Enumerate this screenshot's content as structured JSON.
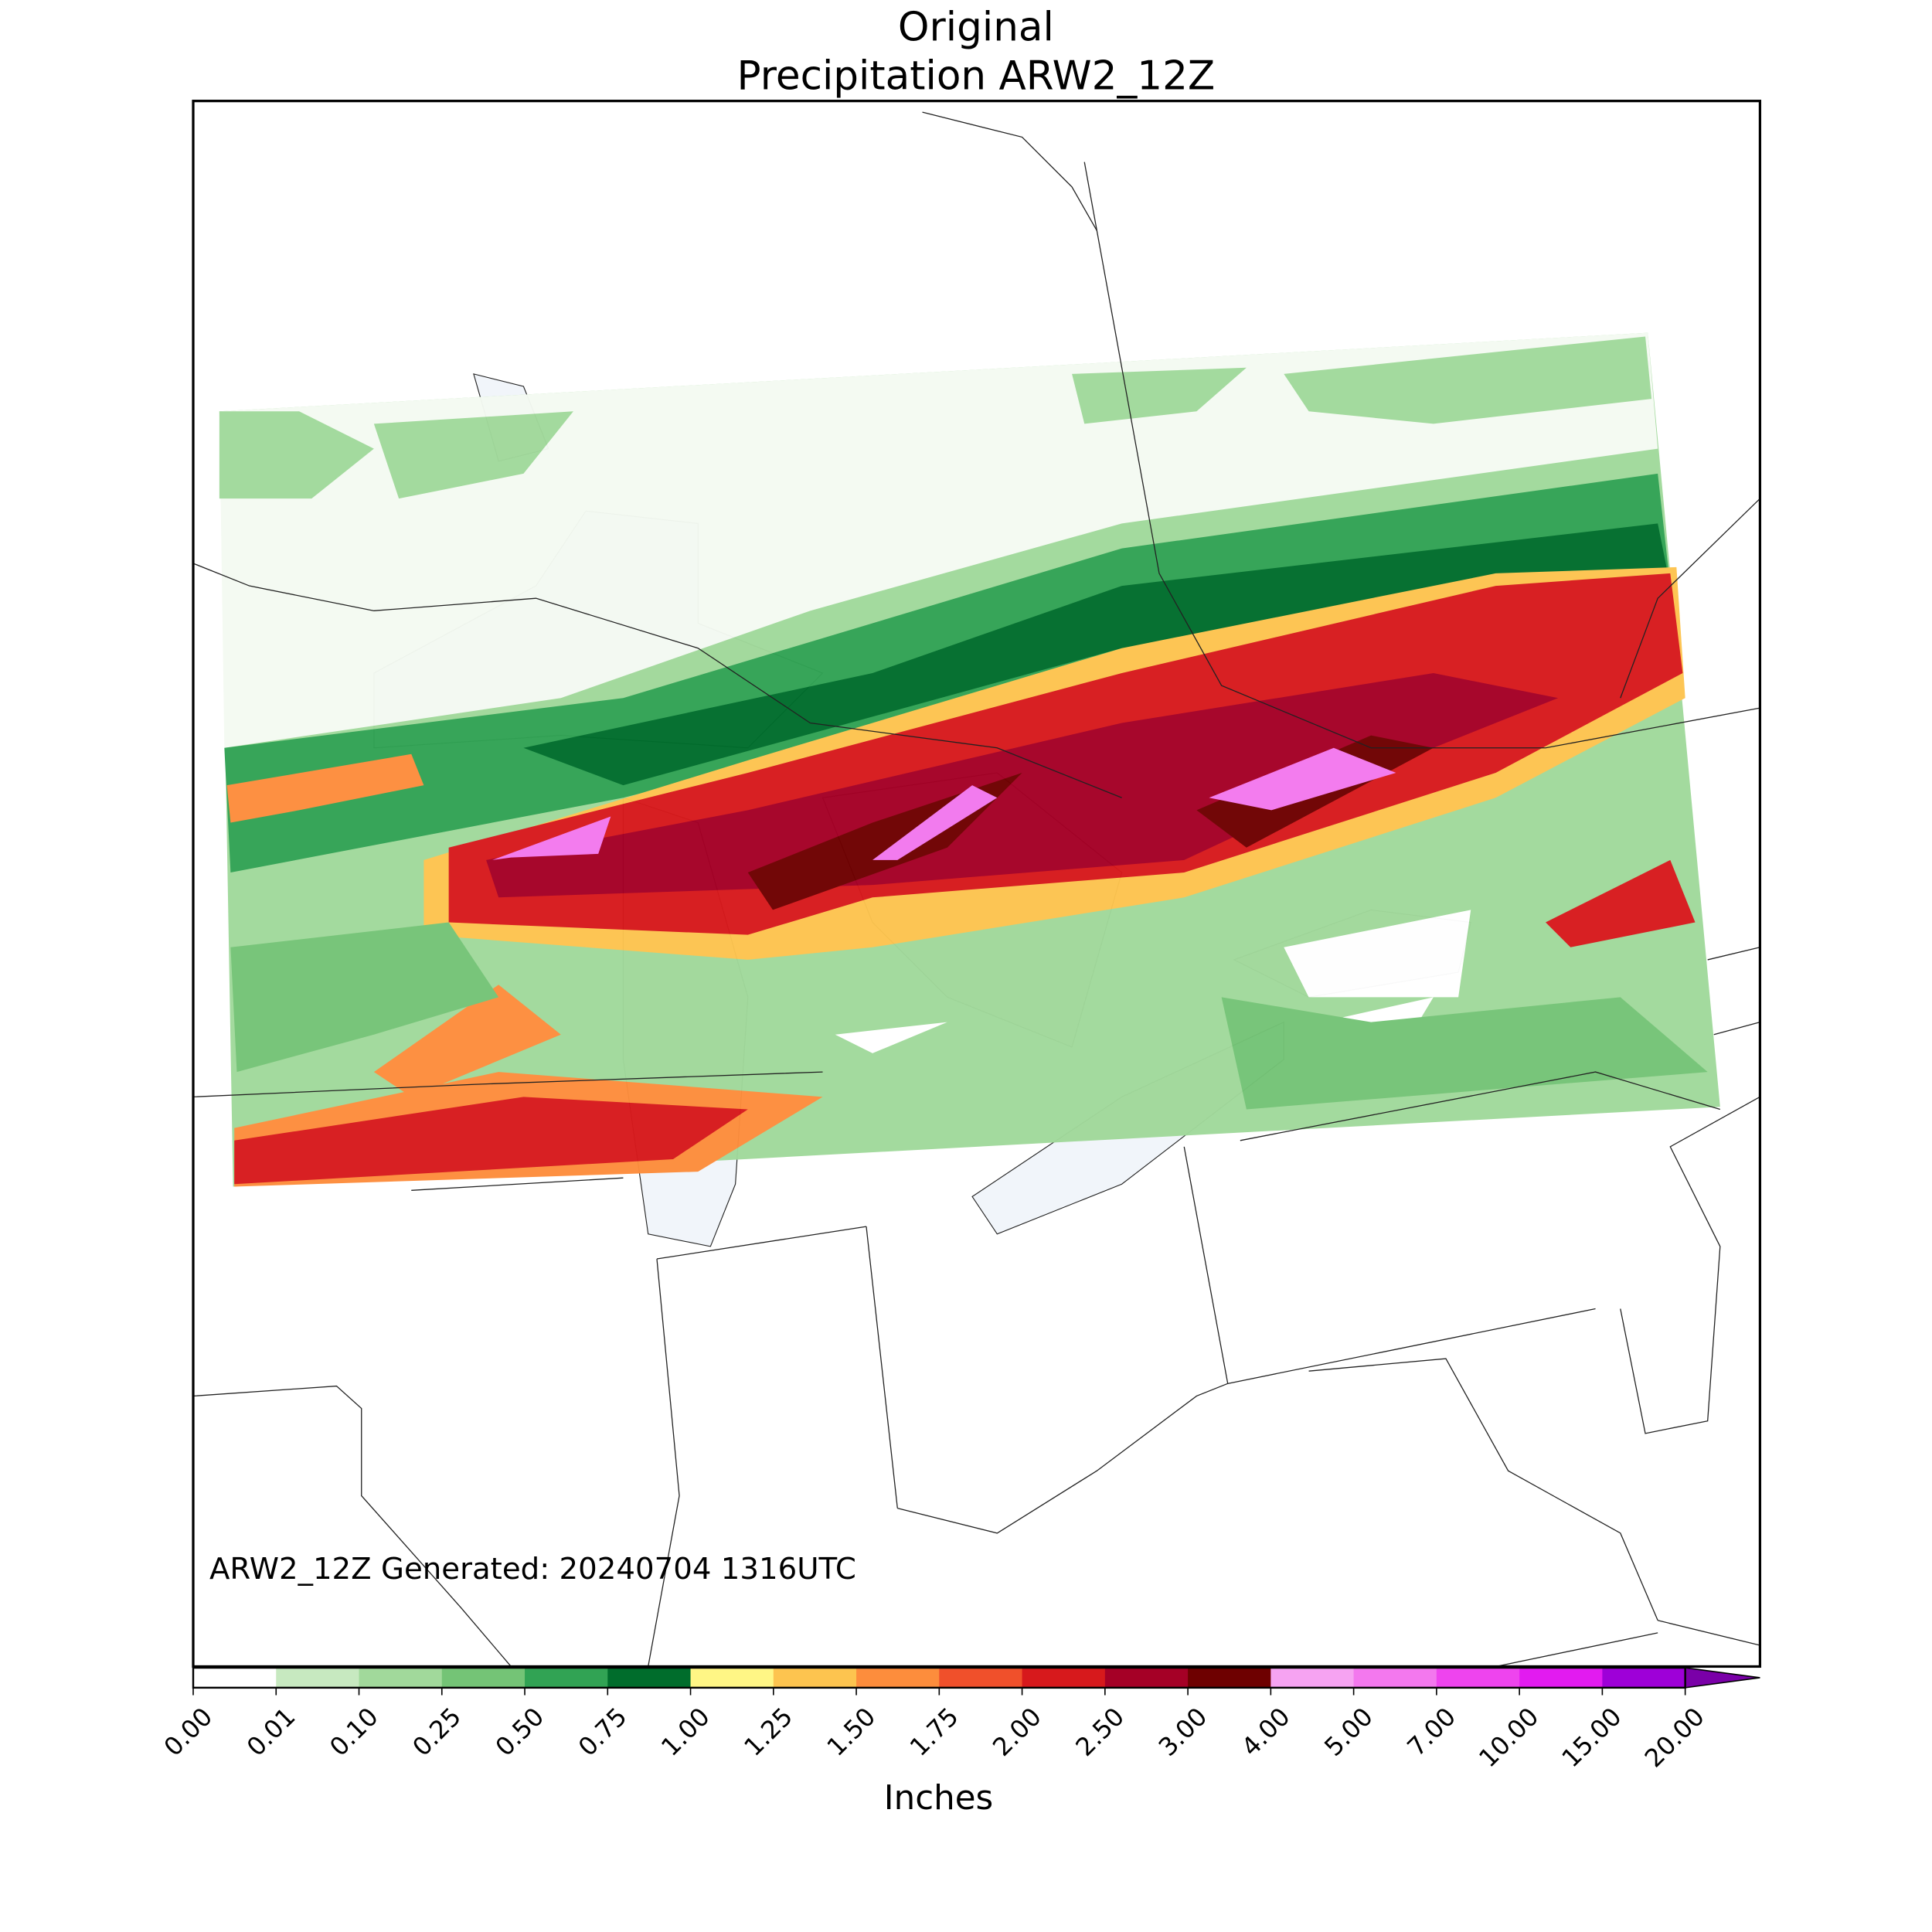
{
  "title": [
    "Original",
    "Precipitation ARW2_12Z"
  ],
  "footer": "ARW2_12Z Generated: 20240704 1316UTC",
  "colorbar": {
    "label": "Inches",
    "ticks": [
      {
        "value": 0,
        "label": "0.00"
      },
      {
        "value": 0.01,
        "label": "0.01"
      },
      {
        "value": 0.1,
        "label": "0.10"
      },
      {
        "value": 0.25,
        "label": "0.25"
      },
      {
        "value": 0.5,
        "label": "0.50"
      },
      {
        "value": 0.75,
        "label": "0.75"
      },
      {
        "value": 1,
        "label": "1.00"
      },
      {
        "value": 1.25,
        "label": "1.25"
      },
      {
        "value": 1.5,
        "label": "1.50"
      },
      {
        "value": 1.75,
        "label": "1.75"
      },
      {
        "value": 2,
        "label": "2.00"
      },
      {
        "value": 2.5,
        "label": "2.50"
      },
      {
        "value": 3,
        "label": "3.00"
      },
      {
        "value": 4,
        "label": "4.00"
      },
      {
        "value": 5,
        "label": "5.00"
      },
      {
        "value": 7,
        "label": "7.00"
      },
      {
        "value": 10,
        "label": "10.00"
      },
      {
        "value": 15,
        "label": "15.00"
      },
      {
        "value": 20,
        "label": "20.00"
      }
    ],
    "colors": [
      "#ffffff",
      "#c7e9c0",
      "#a1d99b",
      "#74c476",
      "#31a354",
      "#006d2c",
      "#fff685",
      "#fdc44f",
      "#fd8d3c",
      "#f0502b",
      "#d7191c",
      "#a50026",
      "#6e0000",
      "#f6a3f2",
      "#f378ee",
      "#ee44ee",
      "#e21bf0",
      "#9e00d8",
      "#7a00a8"
    ]
  }
}
